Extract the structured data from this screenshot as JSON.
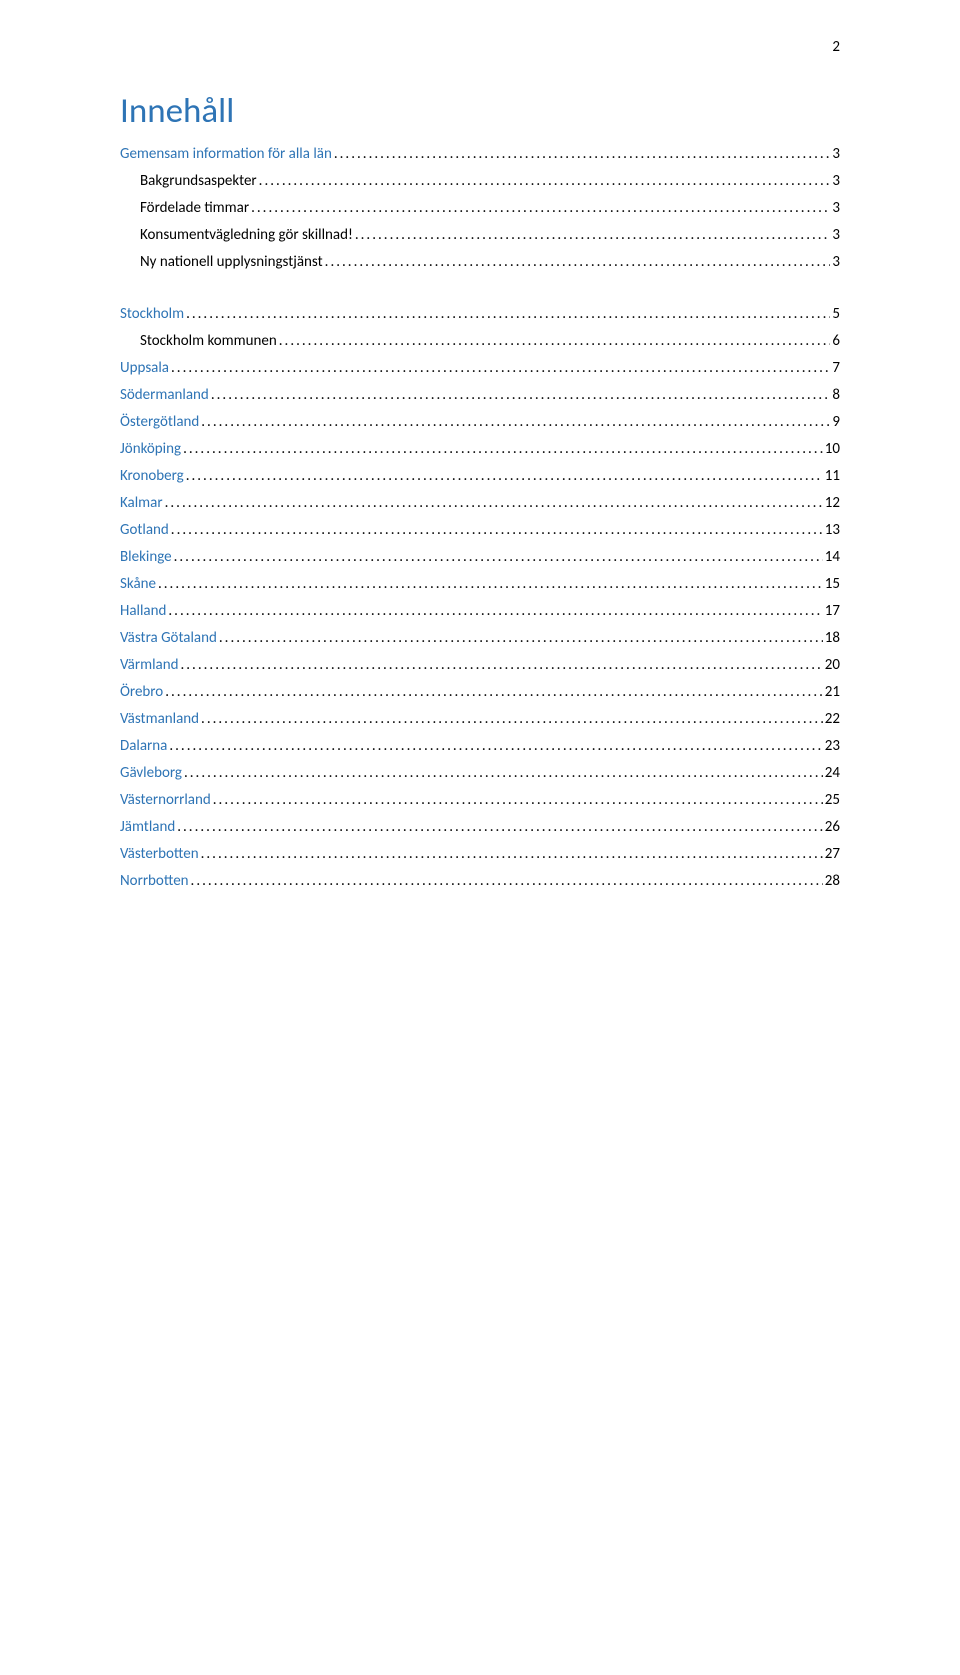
{
  "page_number": "2",
  "title": {
    "text": "Innehåll",
    "color": "#2e74b5"
  },
  "entries": [
    {
      "label": "Gemensam information för alla län",
      "page": "3",
      "indent": 0,
      "color": "#2e74b5",
      "gap_after": "small"
    },
    {
      "label": "Bakgrundsaspekter",
      "page": "3",
      "indent": 1,
      "color": "#000000",
      "gap_after": "small"
    },
    {
      "label": "Fördelade timmar",
      "page": "3",
      "indent": 1,
      "color": "#000000",
      "gap_after": "small"
    },
    {
      "label": "Konsumentvägledning gör skillnad!",
      "page": "3",
      "indent": 1,
      "color": "#000000",
      "gap_after": "small"
    },
    {
      "label": "Ny nationell upplysningstjänst",
      "page": "3",
      "indent": 1,
      "color": "#000000",
      "gap_after": "large"
    },
    {
      "label": "Stockholm",
      "page": "5",
      "indent": 0,
      "color": "#2e74b5",
      "gap_after": "small"
    },
    {
      "label": "Stockholm kommunen",
      "page": "6",
      "indent": 1,
      "color": "#000000",
      "gap_after": "small"
    },
    {
      "label": "Uppsala",
      "page": "7",
      "indent": 0,
      "color": "#2e74b5",
      "gap_after": "small"
    },
    {
      "label": "Södermanland",
      "page": "8",
      "indent": 0,
      "color": "#2e74b5",
      "gap_after": "small"
    },
    {
      "label": "Östergötland",
      "page": "9",
      "indent": 0,
      "color": "#2e74b5",
      "gap_after": "small"
    },
    {
      "label": "Jönköping",
      "page": "10",
      "indent": 0,
      "color": "#2e74b5",
      "gap_after": "small"
    },
    {
      "label": "Kronoberg",
      "page": "11",
      "indent": 0,
      "color": "#2e74b5",
      "gap_after": "small"
    },
    {
      "label": "Kalmar",
      "page": "12",
      "indent": 0,
      "color": "#2e74b5",
      "gap_after": "small"
    },
    {
      "label": "Gotland",
      "page": "13",
      "indent": 0,
      "color": "#2e74b5",
      "gap_after": "small"
    },
    {
      "label": "Blekinge",
      "page": "14",
      "indent": 0,
      "color": "#2e74b5",
      "gap_after": "small"
    },
    {
      "label": "Skåne",
      "page": "15",
      "indent": 0,
      "color": "#2e74b5",
      "gap_after": "small"
    },
    {
      "label": "Halland",
      "page": "17",
      "indent": 0,
      "color": "#2e74b5",
      "gap_after": "small"
    },
    {
      "label": "Västra Götaland",
      "page": "18",
      "indent": 0,
      "color": "#2e74b5",
      "gap_after": "small"
    },
    {
      "label": "Värmland",
      "page": "20",
      "indent": 0,
      "color": "#2e74b5",
      "gap_after": "small"
    },
    {
      "label": "Örebro",
      "page": "21",
      "indent": 0,
      "color": "#2e74b5",
      "gap_after": "small"
    },
    {
      "label": "Västmanland",
      "page": "22",
      "indent": 0,
      "color": "#2e74b5",
      "gap_after": "small"
    },
    {
      "label": "Dalarna",
      "page": "23",
      "indent": 0,
      "color": "#2e74b5",
      "gap_after": "small"
    },
    {
      "label": "Gävleborg",
      "page": "24",
      "indent": 0,
      "color": "#2e74b5",
      "gap_after": "small"
    },
    {
      "label": "Västernorrland",
      "page": "25",
      "indent": 0,
      "color": "#2e74b5",
      "gap_after": "small"
    },
    {
      "label": "Jämtland",
      "page": "26",
      "indent": 0,
      "color": "#2e74b5",
      "gap_after": "small"
    },
    {
      "label": "Västerbotten",
      "page": "27",
      "indent": 0,
      "color": "#2e74b5",
      "gap_after": "small"
    },
    {
      "label": "Norrbotten",
      "page": "28",
      "indent": 0,
      "color": "#2e74b5",
      "gap_after": "none"
    }
  ]
}
